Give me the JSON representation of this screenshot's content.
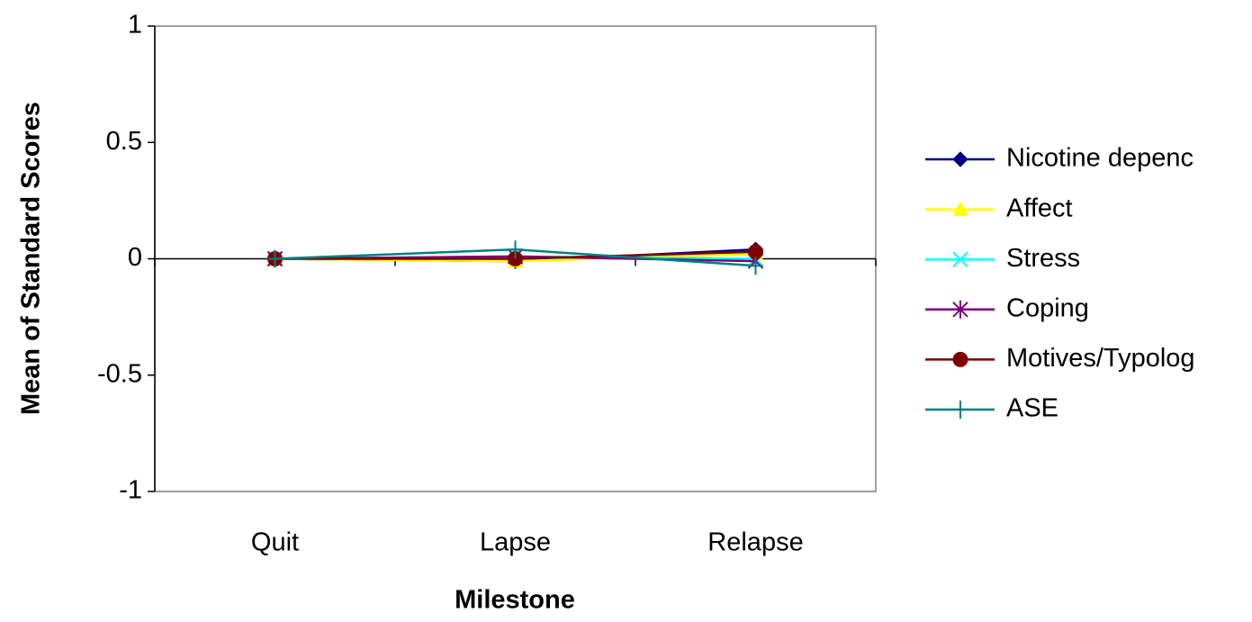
{
  "chart_data": {
    "type": "line",
    "xlabel": "Milestone",
    "ylabel": "Mean of Standard Scores",
    "categories": [
      "Quit",
      "Lapse",
      "Relapse"
    ],
    "ylim": [
      -1,
      1
    ],
    "yticks": [
      -1,
      -0.5,
      0,
      0.5,
      1
    ],
    "series": [
      {
        "name": "Nicotine depenc",
        "color": "#000080",
        "marker": "diamond",
        "values": [
          0,
          -0.01,
          0.04
        ]
      },
      {
        "name": "Affect",
        "color": "#FFFF00",
        "marker": "triangle",
        "values": [
          0,
          -0.01,
          0.02
        ]
      },
      {
        "name": "Stress",
        "color": "#00FFFF",
        "marker": "x",
        "values": [
          0,
          0.01,
          0
        ]
      },
      {
        "name": "Coping",
        "color": "#800080",
        "marker": "star",
        "values": [
          0,
          0.01,
          -0.01
        ]
      },
      {
        "name": "Motives/Typolog",
        "color": "#800000",
        "marker": "circle",
        "values": [
          0,
          0,
          0.03
        ]
      },
      {
        "name": "ASE",
        "color": "#008080",
        "marker": "plus",
        "values": [
          0,
          0.04,
          -0.03
        ]
      }
    ]
  }
}
